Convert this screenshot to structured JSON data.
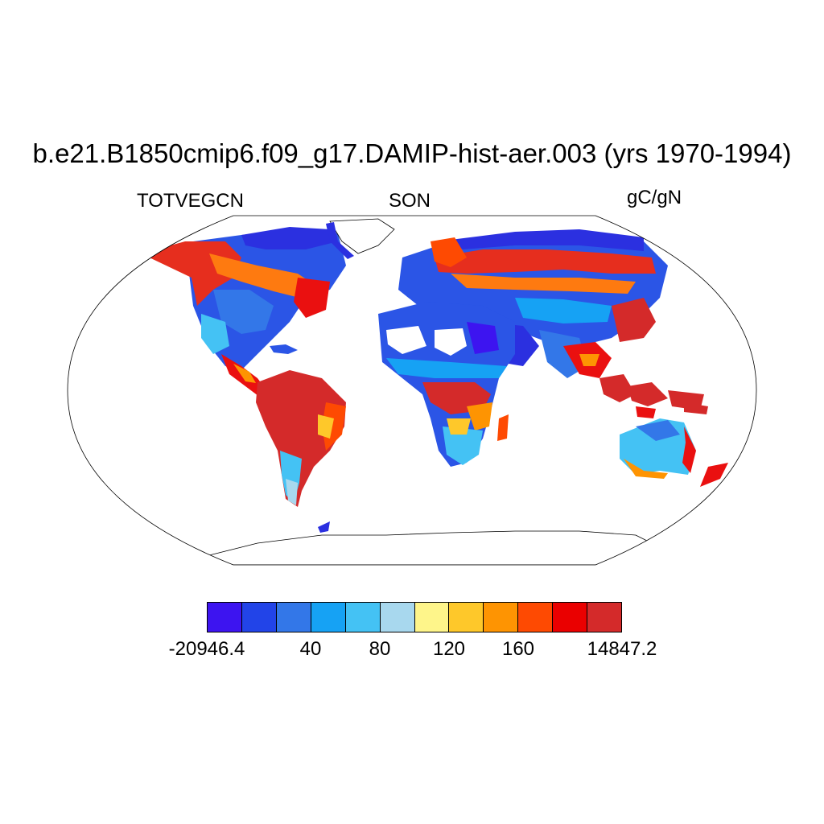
{
  "header": {
    "title": "b.e21.B1850cmip6.f09_g17.DAMIP-hist-aer.003 (yrs 1970-1994)",
    "variable": "TOTVEGCN",
    "season": "SON",
    "units": "gC/gN"
  },
  "colorbar": {
    "colors": [
      "#3d14f0",
      "#2244e8",
      "#3377e8",
      "#16a2f4",
      "#44c2f4",
      "#a8d8ee",
      "#fef58a",
      "#fec82a",
      "#fe9402",
      "#fe4a02",
      "#ea0000",
      "#d42a2a"
    ],
    "labels": [
      "-20946.4",
      "40",
      "80",
      "120",
      "160",
      "14847.2"
    ]
  },
  "map": {
    "projection": "Robinson",
    "colors": {
      "outline": "#000000",
      "coast": "#000000",
      "ice": "#ffffff"
    }
  }
}
